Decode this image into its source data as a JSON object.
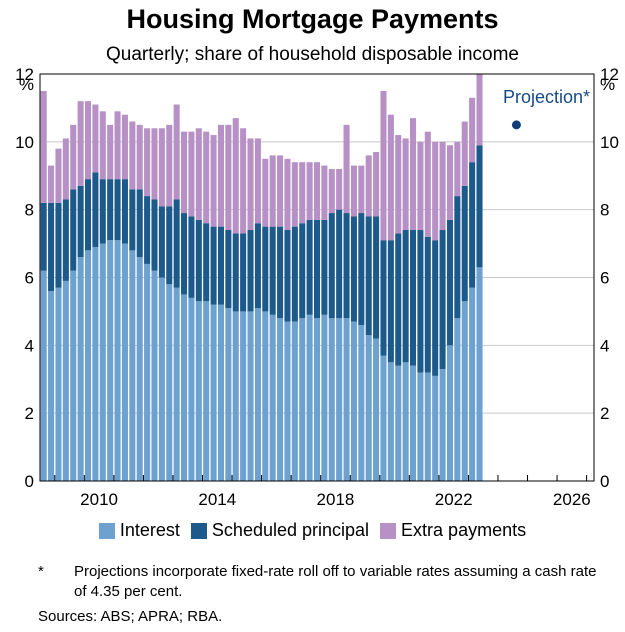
{
  "title": "Housing Mortgage Payments",
  "subtitle": "Quarterly; share of household disposable income",
  "colors": {
    "interest": "#6da1cf",
    "scheduled": "#1d5a8c",
    "extra": "#b791c6",
    "projection_dot": "#0f3f78",
    "projection_text": "#154b86"
  },
  "chart_data": {
    "type": "bar",
    "stacked": true,
    "xlim": [
      2008.5,
      2027.25
    ],
    "ylim": [
      0,
      12
    ],
    "y_ticks": [
      0,
      2,
      4,
      6,
      8,
      10,
      12
    ],
    "x_ticks": [
      2010,
      2014,
      2018,
      2022,
      2026
    ],
    "y_unit_label_left": "%",
    "y_unit_label_right": "%",
    "x": [
      2008.625,
      2008.875,
      2009.125,
      2009.375,
      2009.625,
      2009.875,
      2010.125,
      2010.375,
      2010.625,
      2010.875,
      2011.125,
      2011.375,
      2011.625,
      2011.875,
      2012.125,
      2012.375,
      2012.625,
      2012.875,
      2013.125,
      2013.375,
      2013.625,
      2013.875,
      2014.125,
      2014.375,
      2014.625,
      2014.875,
      2015.125,
      2015.375,
      2015.625,
      2015.875,
      2016.125,
      2016.375,
      2016.625,
      2016.875,
      2017.125,
      2017.375,
      2017.625,
      2017.875,
      2018.125,
      2018.375,
      2018.625,
      2018.875,
      2019.125,
      2019.375,
      2019.625,
      2019.875,
      2020.125,
      2020.375,
      2020.625,
      2020.875,
      2021.125,
      2021.375,
      2021.625,
      2021.875,
      2022.125,
      2022.375,
      2022.625,
      2022.875,
      2023.125,
      2023.375
    ],
    "series": [
      {
        "name": "Interest",
        "values": [
          6.2,
          5.6,
          5.7,
          5.9,
          6.2,
          6.6,
          6.8,
          6.9,
          7.0,
          7.1,
          7.1,
          7.0,
          6.8,
          6.6,
          6.4,
          6.2,
          6.0,
          5.8,
          5.7,
          5.5,
          5.4,
          5.3,
          5.3,
          5.2,
          5.2,
          5.1,
          5.0,
          5.0,
          5.0,
          5.1,
          5.0,
          4.9,
          4.8,
          4.7,
          4.7,
          4.8,
          4.9,
          4.8,
          4.9,
          4.8,
          4.8,
          4.8,
          4.7,
          4.6,
          4.3,
          4.2,
          3.7,
          3.5,
          3.4,
          3.5,
          3.4,
          3.2,
          3.2,
          3.1,
          3.3,
          4.0,
          4.8,
          5.3,
          5.7,
          6.3
        ]
      },
      {
        "name": "Scheduled principal",
        "values": [
          2.0,
          2.6,
          2.5,
          2.4,
          2.4,
          2.1,
          2.1,
          2.2,
          1.9,
          1.8,
          1.8,
          1.9,
          1.8,
          2.0,
          2.0,
          2.1,
          2.1,
          2.3,
          2.6,
          2.4,
          2.4,
          2.4,
          2.3,
          2.3,
          2.3,
          2.3,
          2.3,
          2.3,
          2.4,
          2.5,
          2.5,
          2.6,
          2.7,
          2.7,
          2.8,
          2.8,
          2.8,
          2.9,
          2.8,
          3.1,
          3.2,
          3.1,
          3.1,
          3.3,
          3.5,
          3.6,
          3.4,
          3.6,
          3.9,
          3.9,
          4.0,
          4.2,
          4.0,
          4.0,
          4.1,
          3.7,
          3.6,
          3.4,
          3.7,
          3.6
        ]
      },
      {
        "name": "Extra payments",
        "values": [
          3.3,
          1.1,
          1.6,
          1.8,
          1.9,
          2.5,
          2.3,
          2.0,
          2.0,
          1.6,
          2.0,
          1.9,
          2.0,
          1.9,
          2.0,
          2.1,
          2.3,
          2.4,
          2.8,
          2.4,
          2.5,
          2.7,
          2.7,
          2.7,
          3.0,
          3.1,
          3.4,
          3.1,
          2.7,
          2.5,
          2.0,
          2.1,
          2.1,
          2.1,
          1.9,
          1.8,
          1.7,
          1.7,
          1.6,
          1.3,
          1.2,
          2.6,
          1.5,
          1.4,
          1.8,
          1.9,
          4.4,
          3.7,
          2.9,
          2.7,
          3.3,
          2.6,
          3.1,
          2.9,
          2.6,
          2.2,
          1.6,
          1.9,
          1.9,
          2.1
        ]
      }
    ],
    "projection": {
      "x": 2024.625,
      "y": 10.5,
      "label": "Projection*"
    }
  },
  "legend": {
    "items": [
      "Interest",
      "Scheduled principal",
      "Extra payments"
    ]
  },
  "footnote": {
    "mark": "*",
    "text": "Projections incorporate fixed-rate roll off to variable rates assuming a cash rate of 4.35 per cent."
  },
  "sources": "Sources: ABS; APRA; RBA."
}
